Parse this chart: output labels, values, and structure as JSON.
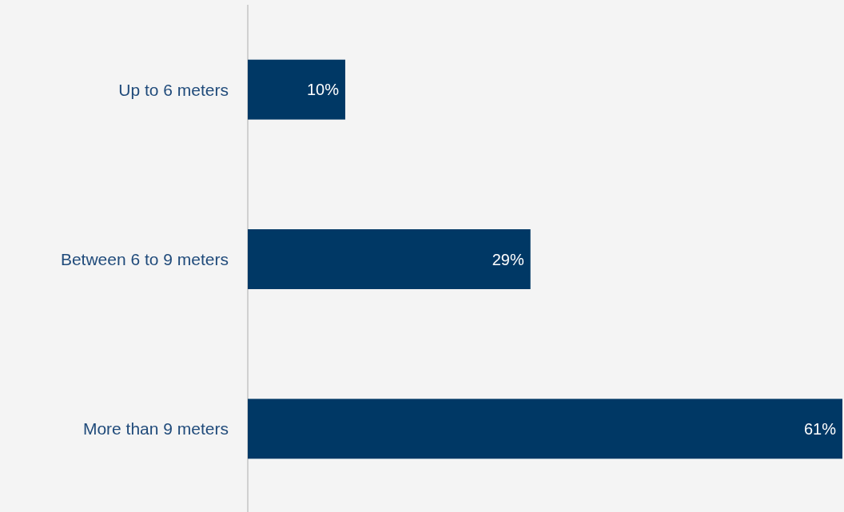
{
  "chart_data": {
    "type": "bar",
    "orientation": "horizontal",
    "categories": [
      "Up to 6 meters",
      "Between 6 to 9 meters",
      "More than 9 meters"
    ],
    "values": [
      10,
      29,
      61
    ],
    "color": "#003865",
    "data_labels": true,
    "value_labels": [
      "10%",
      "29%",
      "61%"
    ]
  }
}
